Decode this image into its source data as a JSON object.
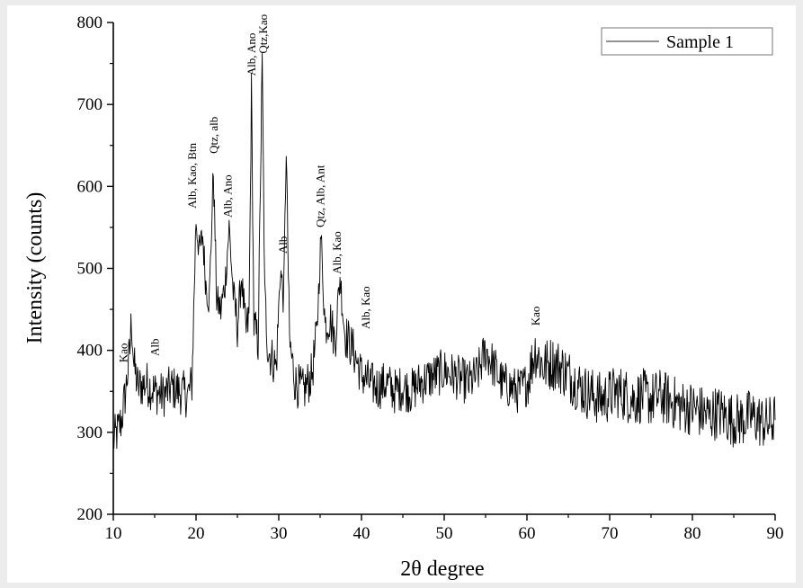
{
  "chart_data": {
    "type": "line",
    "xlabel": "2θ degree",
    "ylabel": "Intensity (counts)",
    "xlim": [
      10,
      90
    ],
    "ylim": [
      200,
      800
    ],
    "xticks": [
      10,
      20,
      30,
      40,
      50,
      60,
      70,
      80,
      90
    ],
    "yticks": [
      200,
      300,
      400,
      500,
      600,
      700,
      800
    ],
    "grid": false,
    "legend_position": "top-right",
    "series": [
      {
        "name": "Sample 1",
        "color": "#000000",
        "x": [
          10,
          10.5,
          11,
          11.5,
          12,
          12.2,
          12.5,
          13,
          14,
          15,
          16,
          17,
          18,
          19,
          19.5,
          20,
          20.4,
          20.8,
          21.2,
          21.6,
          22.1,
          22.5,
          23,
          23.5,
          24,
          24.5,
          25,
          25.5,
          26,
          26.4,
          26.7,
          27,
          27.5,
          28.0,
          28.3,
          28.7,
          29.2,
          29.7,
          30.2,
          30.6,
          30.9,
          31.3,
          32,
          33,
          34,
          34.6,
          35.1,
          35.6,
          36.2,
          36.8,
          37.4,
          38,
          39,
          40,
          41,
          42,
          43,
          44,
          45,
          46,
          47,
          48,
          49,
          50,
          51,
          52,
          53,
          54,
          55,
          56,
          57,
          58,
          59,
          60,
          61,
          62,
          63,
          64,
          65,
          66,
          67,
          68,
          69,
          70,
          71,
          72,
          73,
          74,
          75,
          76,
          77,
          78,
          79,
          80,
          81,
          82,
          83,
          84,
          85,
          86,
          87,
          88,
          89,
          90
        ],
        "values": [
          290,
          300,
          315,
          350,
          400,
          440,
          380,
          355,
          360,
          350,
          345,
          355,
          350,
          345,
          360,
          560,
          520,
          540,
          480,
          460,
          620,
          460,
          450,
          480,
          550,
          470,
          430,
          490,
          420,
          440,
          720,
          430,
          410,
          750,
          470,
          400,
          390,
          380,
          500,
          460,
          650,
          410,
          360,
          350,
          370,
          420,
          540,
          430,
          440,
          410,
          490,
          420,
          400,
          370,
          360,
          355,
          360,
          350,
          355,
          350,
          360,
          365,
          370,
          375,
          370,
          365,
          360,
          370,
          400,
          380,
          360,
          355,
          350,
          360,
          400,
          380,
          385,
          380,
          370,
          360,
          350,
          345,
          340,
          345,
          350,
          345,
          340,
          345,
          340,
          345,
          340,
          335,
          330,
          330,
          325,
          320,
          325,
          320,
          315,
          315,
          320,
          315,
          310,
          315
        ]
      }
    ],
    "annotations": [
      {
        "text": "Kao",
        "x": 11.7,
        "y": 385
      },
      {
        "text": "Alb",
        "x": 15.5,
        "y": 393
      },
      {
        "text": "Alb, Kao, Btn",
        "x": 20.0,
        "y": 573
      },
      {
        "text": "Qtz, alb",
        "x": 22.6,
        "y": 640
      },
      {
        "text": "Alb, Ano",
        "x": 24.3,
        "y": 562
      },
      {
        "text": "Alb, Ano",
        "x": 27.2,
        "y": 735
      },
      {
        "text": "Qtz,Kao",
        "x": 28.6,
        "y": 762
      },
      {
        "text": "Alb",
        "x": 31.0,
        "y": 518
      },
      {
        "text": "Qtz, Alb, Ant",
        "x": 35.5,
        "y": 550
      },
      {
        "text": "Alb, Kao",
        "x": 37.5,
        "y": 493
      },
      {
        "text": "Alb, Kao",
        "x": 41.0,
        "y": 426
      },
      {
        "text": "Kao",
        "x": 61.5,
        "y": 430
      }
    ]
  }
}
